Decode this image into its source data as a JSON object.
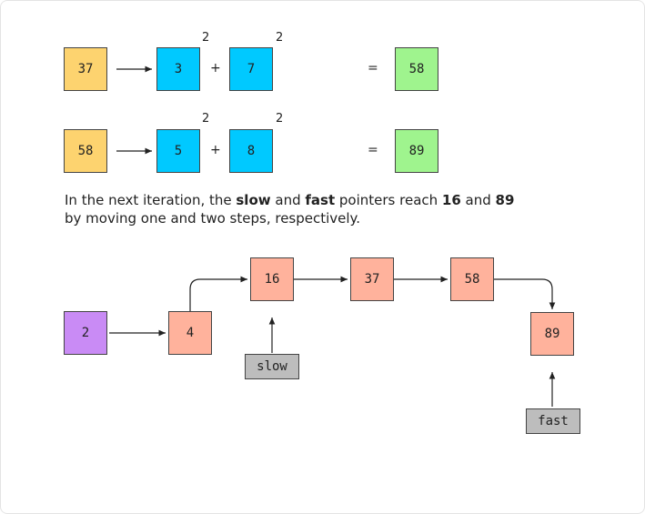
{
  "equations": [
    {
      "start": "37",
      "digits": [
        "3",
        "7"
      ],
      "exponents": [
        "2",
        "2"
      ],
      "plus": "+",
      "equals": "=",
      "result": "58"
    },
    {
      "start": "58",
      "digits": [
        "5",
        "8"
      ],
      "exponents": [
        "2",
        "2"
      ],
      "plus": "+",
      "equals": "=",
      "result": "89"
    }
  ],
  "caption": {
    "part1": "In the next iteration, the ",
    "slow": "slow",
    "part2": " and ",
    "fast": "fast",
    "part3": " pointers reach ",
    "n1": "16",
    "part4": " and ",
    "n2": "89",
    "line2": "by moving one and two steps, respectively."
  },
  "list": {
    "nodes": [
      "2",
      "4",
      "16",
      "37",
      "58",
      "89"
    ],
    "pointers": {
      "slow": "slow",
      "fast": "fast"
    }
  },
  "colors": {
    "yellow": "#fdd36f",
    "blue": "#00c9ff",
    "green": "#9ff48e",
    "salmon": "#ffb29c",
    "purple": "#c98bf5",
    "pointer": "#bdbdbd"
  }
}
